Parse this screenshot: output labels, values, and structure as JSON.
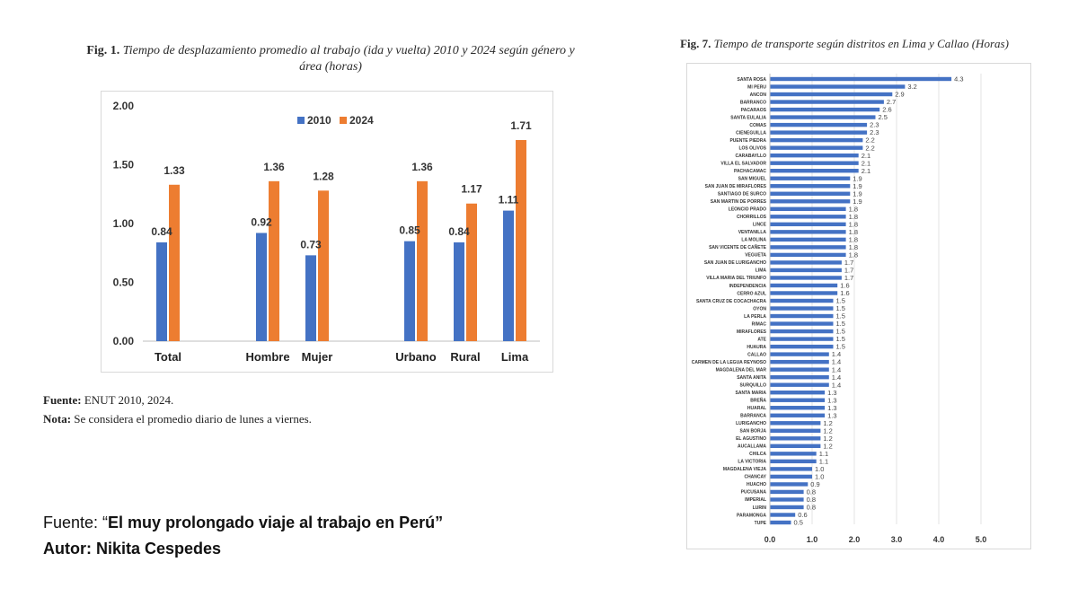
{
  "fig1": {
    "label": "Fig. 1.",
    "title_line1": "Tiempo de desplazamiento promedio al trabajo (ida y vuelta) 2010 y 2024 según género y",
    "title_line2": "área (horas)",
    "source_label": "Fuente:",
    "source_text": " ENUT 2010, 2024.",
    "note_label": "Nota:",
    "note_text": " Se considera el promedio diario de lunes a viernes."
  },
  "fig7": {
    "label": "Fig. 7.",
    "title": "Tiempo de transporte según distritos en Lima y Callao (Horas)"
  },
  "credit": {
    "prefix": "Fuente: “",
    "article": "El muy prolongado viaje al trabajo en Perú",
    "suffix": "”",
    "author": "Autor: Nikita Cespedes"
  },
  "colors": {
    "series2010": "#4472c4",
    "series2024": "#ed7d31",
    "hbar": "#4472c4"
  },
  "chart_data": [
    {
      "type": "bar",
      "title": "Tiempo de desplazamiento promedio al trabajo (ida y vuelta) 2010 y 2024 según género y área (horas)",
      "categories": [
        "Total",
        "Hombre",
        "Mujer",
        "Urbano",
        "Rural",
        "Lima"
      ],
      "series": [
        {
          "name": "2010",
          "values": [
            0.84,
            0.92,
            0.73,
            0.85,
            0.84,
            1.11
          ],
          "labels": [
            "0.84",
            "0.92",
            "0.73",
            "0.85",
            "0.84",
            "1.11"
          ]
        },
        {
          "name": "2024",
          "values": [
            1.33,
            1.36,
            1.28,
            1.36,
            1.17,
            1.71
          ],
          "labels": [
            "1.33",
            "1.36",
            "1.28",
            "1.36",
            "1.17",
            "1.71"
          ]
        }
      ],
      "yticks": [
        "0.00",
        "0.50",
        "1.00",
        "1.50",
        "2.00"
      ],
      "ylim": [
        0,
        2
      ],
      "legend": "top-center"
    },
    {
      "type": "bar",
      "orientation": "horizontal",
      "title": "Tiempo de transporte según distritos en Lima y Callao (Horas)",
      "categories": [
        "SANTA ROSA",
        "MI PERU",
        "ANCON",
        "BARRANCO",
        "PACARAOS",
        "SANTA EULALIA",
        "COMAS",
        "CIENEGUILLA",
        "PUENTE PIEDRA",
        "LOS OLIVOS",
        "CARABAYLLO",
        "VILLA EL SALVADOR",
        "PACHACAMAC",
        "SAN MIGUEL",
        "SAN JUAN DE MIRAFLORES",
        "SANTIAGO DE SURCO",
        "SAN MARTIN DE PORRES",
        "LEONCIO PRADO",
        "CHORRILLOS",
        "LINCE",
        "VENTANILLA",
        "LA MOLINA",
        "SAN VICENTE DE CAÑETE",
        "VEGUETA",
        "SAN JUAN DE LURIGANCHO",
        "LIMA",
        "VILLA MARIA DEL TRIUNFO",
        "INDEPENDENCIA",
        "CERRO AZUL",
        "SANTA CRUZ DE COCACHACRA",
        "OYON",
        "LA PERLA",
        "RIMAC",
        "MIRAFLORES",
        "ATE",
        "HUAURA",
        "CALLAO",
        "CARMEN DE LA LEGUA REYNOSO",
        "MAGDALENA DEL MAR",
        "SANTA ANITA",
        "SURQUILLO",
        "SANTA MARIA",
        "BREÑA",
        "HUARAL",
        "BARRANCA",
        "LURIGANCHO",
        "SAN BORJA",
        "EL AGUSTINO",
        "AUCALLAMA",
        "CHILCA",
        "LA VICTORIA",
        "MAGDALENA VIEJA",
        "CHANCAY",
        "HUACHO",
        "PUCUSANA",
        "IMPERIAL",
        "LURIN",
        "PARAMONGA",
        "TUPE"
      ],
      "values": [
        4.3,
        3.2,
        2.9,
        2.7,
        2.6,
        2.5,
        2.3,
        2.3,
        2.2,
        2.2,
        2.1,
        2.1,
        2.1,
        1.9,
        1.9,
        1.9,
        1.9,
        1.8,
        1.8,
        1.8,
        1.8,
        1.8,
        1.8,
        1.8,
        1.7,
        1.7,
        1.7,
        1.6,
        1.6,
        1.5,
        1.5,
        1.5,
        1.5,
        1.5,
        1.5,
        1.5,
        1.4,
        1.4,
        1.4,
        1.4,
        1.4,
        1.3,
        1.3,
        1.3,
        1.3,
        1.2,
        1.2,
        1.2,
        1.2,
        1.1,
        1.1,
        1.0,
        1.0,
        0.9,
        0.8,
        0.8,
        0.8,
        0.6,
        0.5
      ],
      "xticks": [
        "0.0",
        "1.0",
        "2.0",
        "3.0",
        "4.0",
        "5.0"
      ],
      "xlim": [
        0,
        5
      ]
    }
  ]
}
